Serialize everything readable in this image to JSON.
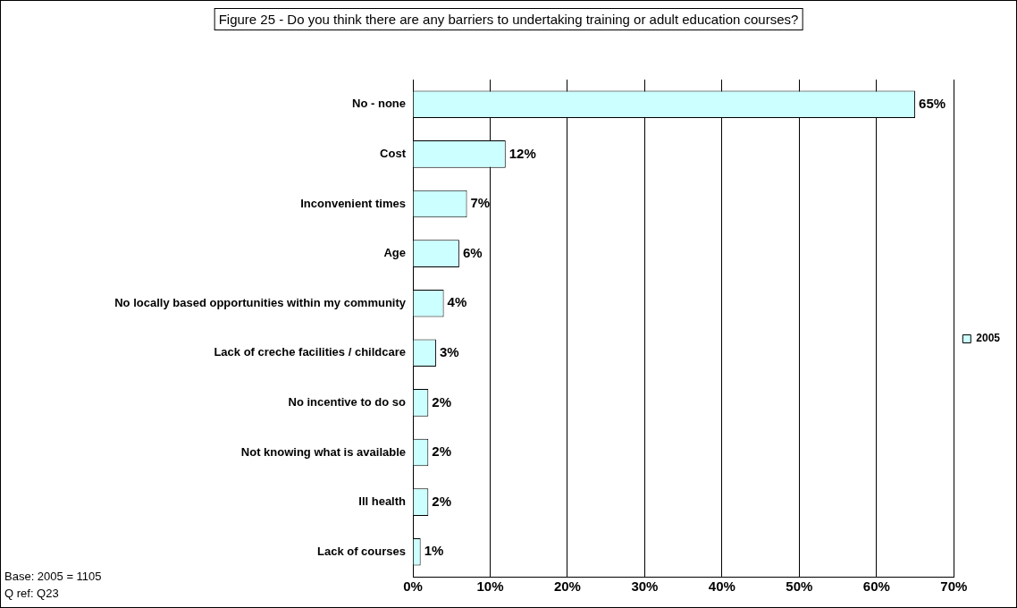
{
  "chart_data": {
    "type": "bar",
    "orientation": "horizontal",
    "title": "Figure 25 - Do you think there are any barriers to undertaking training or adult education courses?",
    "categories": [
      "No - none",
      "Cost",
      "Inconvenient times",
      "Age",
      "No locally based opportunities within my community",
      "Lack of creche facilities / childcare",
      "No incentive to do so",
      "Not knowing what is available",
      "Ill health",
      "Lack of courses"
    ],
    "series": [
      {
        "name": "2005",
        "color": "#ccffff",
        "values": [
          65,
          12,
          7,
          6,
          4,
          3,
          2,
          2,
          2,
          1
        ],
        "value_labels": [
          "65%",
          "12%",
          "7%",
          "6%",
          "4%",
          "3%",
          "2%",
          "2%",
          "2%",
          "1%"
        ]
      }
    ],
    "xlim": [
      0,
      70
    ],
    "xticks": [
      {
        "value": 0,
        "label": "0%"
      },
      {
        "value": 10,
        "label": "10%"
      },
      {
        "value": 20,
        "label": "20%"
      },
      {
        "value": 30,
        "label": "30%"
      },
      {
        "value": 40,
        "label": "40%"
      },
      {
        "value": 50,
        "label": "50%"
      },
      {
        "value": 60,
        "label": "60%"
      },
      {
        "value": 70,
        "label": "70%"
      }
    ],
    "grid": "x",
    "legend": "right",
    "annotations": [
      "Base: 2005 = 1105",
      "Q ref: Q23"
    ]
  }
}
